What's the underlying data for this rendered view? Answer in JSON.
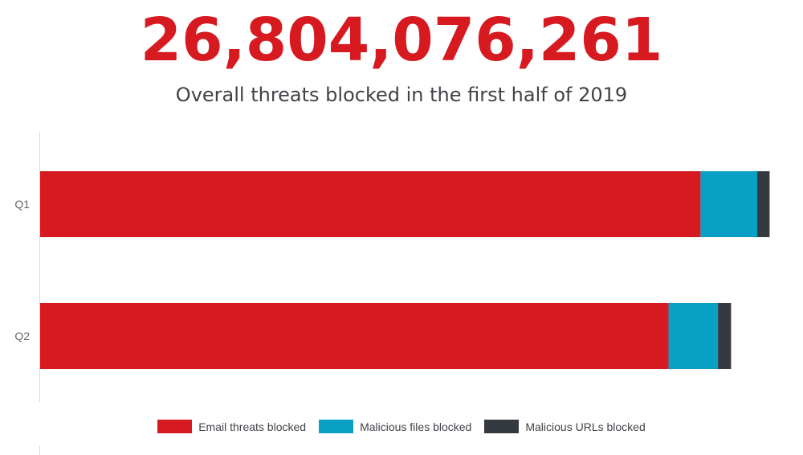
{
  "headline": "26,804,076,261",
  "subtitle": "Overall threats blocked in the first half of 2019",
  "chart_data": {
    "type": "bar",
    "orientation": "horizontal",
    "stacked": true,
    "categories": [
      "Q1",
      "Q2"
    ],
    "series": [
      {
        "name": "Email threats blocked",
        "values": [
          908,
          864
        ],
        "color": "#d71920"
      },
      {
        "name": "Malicious files blocked",
        "values": [
          78,
          68
        ],
        "color": "#0a9fc4"
      },
      {
        "name": "Malicious URLs blocked",
        "values": [
          17,
          18
        ],
        "color": "#343a40"
      }
    ],
    "xlim": [
      0,
      1050
    ],
    "grid": false,
    "legend_position": "bottom-center"
  }
}
